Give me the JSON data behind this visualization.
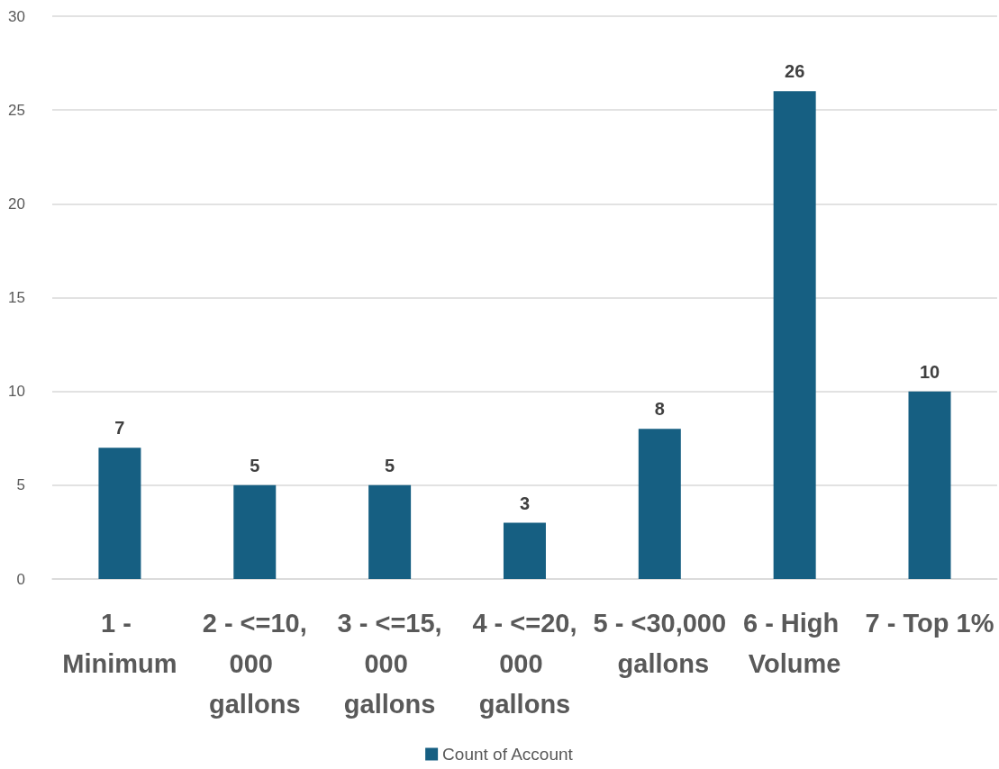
{
  "chart_data": {
    "type": "bar",
    "categories": [
      "1 - Minimum",
      "2 - <=10,000 gallons",
      "3 - <=15,000 gallons",
      "4 - <=20,000 gallons",
      "5 - <30,000 gallons",
      "6 - High Volume",
      "7 - Top 1%"
    ],
    "series": [
      {
        "name": "Count of Account",
        "color": "#165f82",
        "values": [
          7,
          5,
          5,
          3,
          8,
          26,
          10
        ]
      }
    ],
    "ylim": [
      0,
      30
    ],
    "yticks": [
      0,
      5,
      10,
      15,
      20,
      25,
      30
    ],
    "grid": "y",
    "legend": "bottom",
    "data_labels": true
  }
}
